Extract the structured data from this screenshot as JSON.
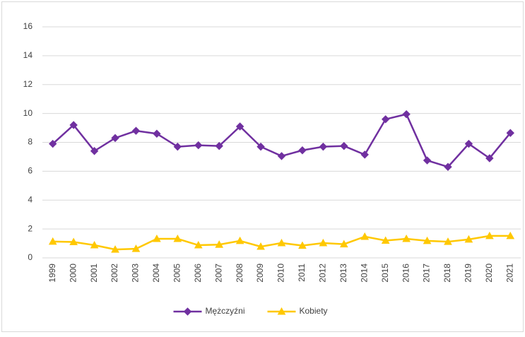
{
  "chart_data": {
    "type": "line",
    "categories": [
      "1999",
      "2000",
      "2001",
      "2002",
      "2003",
      "2004",
      "2005",
      "2006",
      "2007",
      "2008",
      "2009",
      "2010",
      "2011",
      "2012",
      "2013",
      "2014",
      "2015",
      "2016",
      "2017",
      "2018",
      "2019",
      "2020",
      "2021"
    ],
    "series": [
      {
        "name": "Mężczyźni",
        "color": "#7030a0",
        "marker": "diamond",
        "values": [
          7.9,
          9.2,
          7.4,
          8.3,
          8.8,
          8.6,
          7.7,
          7.8,
          7.75,
          9.1,
          7.7,
          7.05,
          7.45,
          7.7,
          7.75,
          7.15,
          9.6,
          9.95,
          6.75,
          6.3,
          7.9,
          6.9,
          8.65
        ]
      },
      {
        "name": "Kobiety",
        "color": "#ffc800",
        "marker": "triangle",
        "values": [
          1.13,
          1.1,
          0.88,
          0.58,
          0.63,
          1.32,
          1.32,
          0.88,
          0.92,
          1.18,
          0.78,
          1.03,
          0.85,
          1.03,
          0.95,
          1.47,
          1.2,
          1.32,
          1.18,
          1.12,
          1.28,
          1.52,
          1.52
        ]
      }
    ],
    "ylim": [
      0,
      16
    ],
    "yticks": [
      0,
      2,
      4,
      6,
      8,
      10,
      12,
      14,
      16
    ],
    "grid": true,
    "legend": "bottom"
  }
}
